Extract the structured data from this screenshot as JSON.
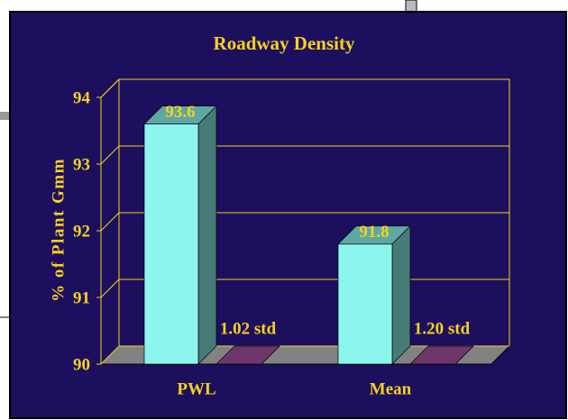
{
  "chart_data": {
    "type": "bar3d",
    "title": "Roadway Density",
    "y_label": "% of Plant Gmm",
    "categories": [
      "PWL",
      "Mean"
    ],
    "series": [
      {
        "color": "#8cf6ee",
        "values": [
          93.6,
          91.8
        ]
      },
      {
        "color": "#a2509c",
        "values": [
          1.02,
          1.2
        ],
        "value_labels": [
          "1.02 std",
          "1.20 std"
        ]
      }
    ],
    "ylim": [
      90,
      94
    ],
    "yticks": [
      90,
      91,
      92,
      93,
      94
    ],
    "grid": true
  }
}
